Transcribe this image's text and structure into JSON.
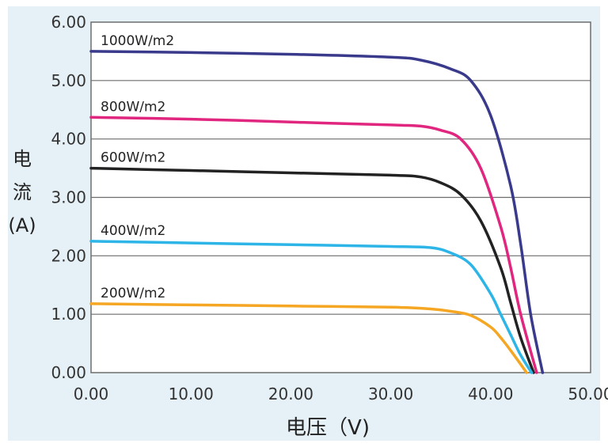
{
  "chart_data": {
    "type": "line",
    "xlabel": "电压（V)",
    "ylabel": "电流(A)",
    "xlim": [
      0,
      50
    ],
    "ylim": [
      0,
      6
    ],
    "x_ticks": [
      "0.00",
      "10.00",
      "20.00",
      "30.00",
      "40.00",
      "50.00"
    ],
    "y_ticks": [
      "0.00",
      "1.00",
      "2.00",
      "3.00",
      "4.00",
      "5.00",
      "6.00"
    ],
    "grid": "horizontal",
    "series": [
      {
        "name": "1000W/m2",
        "color": "#3a3a8c",
        "x": [
          0,
          10,
          20,
          30,
          33,
          36,
          38,
          40,
          42,
          43,
          44,
          45.2
        ],
        "y": [
          5.5,
          5.48,
          5.45,
          5.4,
          5.35,
          5.2,
          5.0,
          4.4,
          3.2,
          2.2,
          1.0,
          0
        ]
      },
      {
        "name": "800W/m2",
        "color": "#e0267f",
        "x": [
          0,
          10,
          20,
          30,
          33,
          35,
          37,
          39,
          41,
          42,
          43,
          44.6
        ],
        "y": [
          4.37,
          4.34,
          4.29,
          4.24,
          4.22,
          4.15,
          4.0,
          3.5,
          2.5,
          1.8,
          1.0,
          0
        ]
      },
      {
        "name": "600W/m2",
        "color": "#222222",
        "x": [
          0,
          10,
          20,
          30,
          33,
          35,
          37,
          39,
          41,
          42,
          43,
          44.3
        ],
        "y": [
          3.5,
          3.46,
          3.42,
          3.38,
          3.35,
          3.25,
          3.05,
          2.6,
          1.8,
          1.2,
          0.6,
          0
        ]
      },
      {
        "name": "400W/m2",
        "color": "#2cb5e6",
        "x": [
          0,
          10,
          20,
          30,
          34,
          36,
          38,
          40,
          41,
          42,
          43,
          44.1
        ],
        "y": [
          2.25,
          2.22,
          2.19,
          2.16,
          2.14,
          2.05,
          1.85,
          1.35,
          1.0,
          0.65,
          0.3,
          0
        ]
      },
      {
        "name": "200W/m2",
        "color": "#f5a623",
        "x": [
          0,
          10,
          20,
          30,
          34,
          36,
          38,
          40,
          41,
          42,
          43.6
        ],
        "y": [
          1.18,
          1.16,
          1.14,
          1.12,
          1.09,
          1.05,
          0.98,
          0.78,
          0.6,
          0.38,
          0
        ]
      }
    ]
  }
}
